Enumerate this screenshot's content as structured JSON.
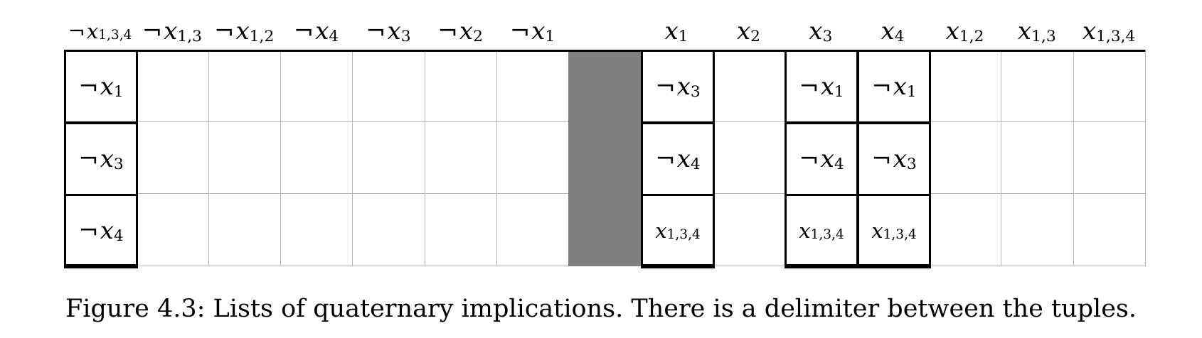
{
  "columns": [
    {
      "neg": "¬",
      "var": "x",
      "sub": "1,3,4"
    },
    {
      "neg": "¬",
      "var": "x",
      "sub": "1,3"
    },
    {
      "neg": "¬",
      "var": "x",
      "sub": "1,2"
    },
    {
      "neg": "¬",
      "var": "x",
      "sub": "4"
    },
    {
      "neg": "¬",
      "var": "x",
      "sub": "3"
    },
    {
      "neg": "¬",
      "var": "x",
      "sub": "2"
    },
    {
      "neg": "¬",
      "var": "x",
      "sub": "1"
    },
    null,
    {
      "neg": "",
      "var": "x",
      "sub": "1"
    },
    {
      "neg": "",
      "var": "x",
      "sub": "2"
    },
    {
      "neg": "",
      "var": "x",
      "sub": "3"
    },
    {
      "neg": "",
      "var": "x",
      "sub": "4"
    },
    {
      "neg": "",
      "var": "x",
      "sub": "1,2"
    },
    {
      "neg": "",
      "var": "x",
      "sub": "1,3"
    },
    {
      "neg": "",
      "var": "x",
      "sub": "1,3,4"
    }
  ],
  "lists": [
    {
      "column": 0,
      "entries": [
        {
          "neg": "¬",
          "var": "x",
          "sub": "1"
        },
        {
          "neg": "¬",
          "var": "x",
          "sub": "3"
        },
        {
          "neg": "¬",
          "var": "x",
          "sub": "4"
        }
      ]
    },
    {
      "column": 8,
      "entries": [
        {
          "neg": "¬",
          "var": "x",
          "sub": "3"
        },
        {
          "neg": "¬",
          "var": "x",
          "sub": "4"
        },
        {
          "neg": "",
          "var": "x",
          "sub": "1,3,4"
        }
      ]
    },
    {
      "column": 10,
      "entries": [
        {
          "neg": "¬",
          "var": "x",
          "sub": "1"
        },
        {
          "neg": "¬",
          "var": "x",
          "sub": "4"
        },
        {
          "neg": "",
          "var": "x",
          "sub": "1,3,4"
        }
      ]
    },
    {
      "column": 11,
      "entries": [
        {
          "neg": "¬",
          "var": "x",
          "sub": "1"
        },
        {
          "neg": "¬",
          "var": "x",
          "sub": "3"
        },
        {
          "neg": "",
          "var": "x",
          "sub": "1,3,4"
        }
      ]
    }
  ],
  "delimiter_column": 7,
  "delimiter_color": "#7f7f7f",
  "caption": "Figure 4.3: Lists of quaternary implications. There is a delimiter between the tuples."
}
